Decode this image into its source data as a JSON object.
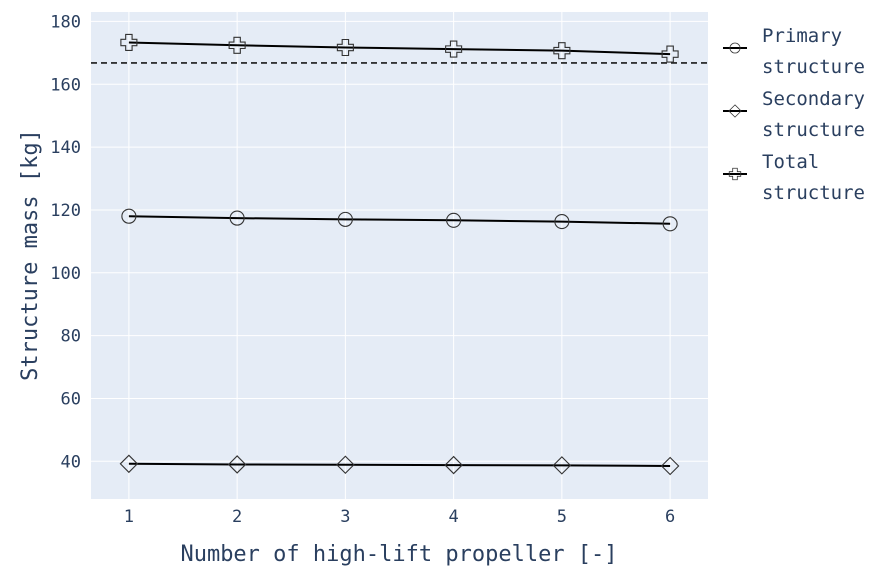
{
  "chart_data": {
    "type": "line",
    "title": "",
    "xlabel": "Number of high-lift propeller [-]",
    "ylabel": "Structure mass [kg]",
    "x": [
      1,
      2,
      3,
      4,
      5,
      6
    ],
    "xticks": [
      "1",
      "2",
      "3",
      "4",
      "5",
      "6"
    ],
    "xlim": [
      0.65,
      6.35
    ],
    "ylim": [
      28,
      183
    ],
    "yticks": [
      "40",
      "60",
      "80",
      "100",
      "120",
      "140",
      "160",
      "180"
    ],
    "grid": true,
    "legend_position": "right",
    "background_color": "#e5ecf6",
    "line_color": "#000000",
    "text_color": "#2a3f5f",
    "reference_line": {
      "y": 166.8,
      "style": "dashed"
    },
    "series": [
      {
        "name": "Primary structure",
        "marker": "circle",
        "values": [
          118.0,
          117.4,
          117.0,
          116.7,
          116.3,
          115.6
        ]
      },
      {
        "name": "Secondary structure",
        "marker": "diamond",
        "values": [
          39.2,
          39.0,
          38.9,
          38.8,
          38.7,
          38.5
        ]
      },
      {
        "name": "Total structure",
        "marker": "cross",
        "values": [
          173.3,
          172.4,
          171.7,
          171.2,
          170.7,
          169.6
        ]
      }
    ]
  }
}
